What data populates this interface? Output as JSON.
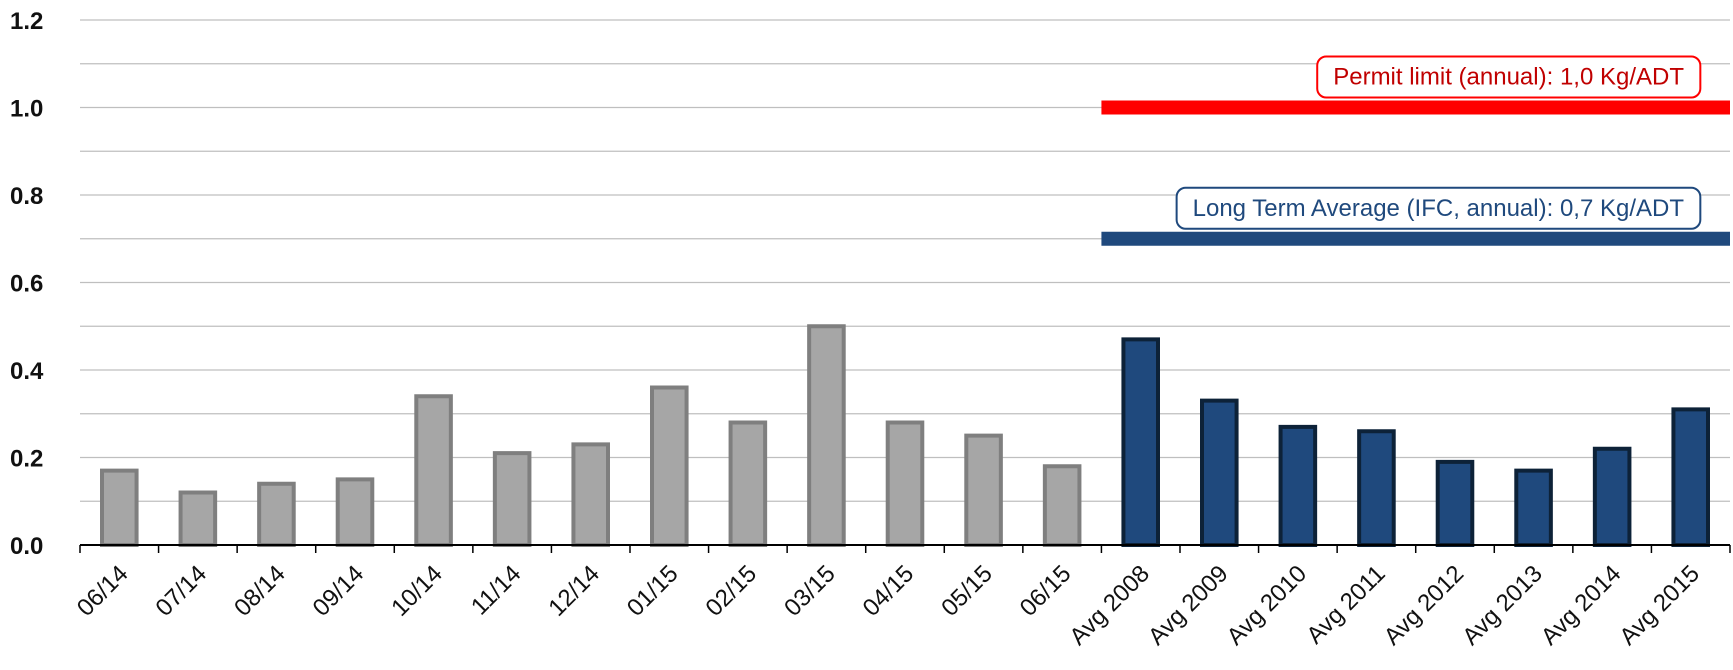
{
  "chart_data": {
    "type": "bar",
    "title": "",
    "xlabel": "",
    "ylabel": "",
    "ylim": [
      0,
      1.2
    ],
    "ytick_step": 0.2,
    "yticks": [
      "0.0",
      "0.2",
      "0.4",
      "0.6",
      "0.8",
      "1.0",
      "1.2"
    ],
    "grid": true,
    "legend": "none",
    "categories": [
      "06/14",
      "07/14",
      "08/14",
      "09/14",
      "10/14",
      "11/14",
      "12/14",
      "01/15",
      "02/15",
      "03/15",
      "04/15",
      "05/15",
      "06/15",
      "Avg 2008",
      "Avg 2009",
      "Avg 2010",
      "Avg 2011",
      "Avg 2012",
      "Avg 2013",
      "Avg 2014",
      "Avg 2015"
    ],
    "values": [
      0.17,
      0.12,
      0.14,
      0.15,
      0.34,
      0.21,
      0.23,
      0.36,
      0.28,
      0.5,
      0.28,
      0.25,
      0.18,
      0.47,
      0.33,
      0.27,
      0.26,
      0.19,
      0.17,
      0.22,
      0.31
    ],
    "bar_groups": [
      {
        "from": 0,
        "to": 12,
        "fill": "#a6a6a6",
        "stroke": "#7f7f7f"
      },
      {
        "from": 13,
        "to": 20,
        "fill": "#1f497d",
        "stroke": "#0d2238"
      }
    ],
    "reference_lines": [
      {
        "value": 1.0,
        "from_category": 13,
        "label": "Permit limit (annual): 1,0 Kg/ADT",
        "color": "#ff0000",
        "text_color": "#c00000"
      },
      {
        "value": 0.7,
        "from_category": 13,
        "label": "Long Term Average (IFC, annual): 0,7 Kg/ADT",
        "color": "#1f497d",
        "text_color": "#1f497d"
      }
    ]
  }
}
